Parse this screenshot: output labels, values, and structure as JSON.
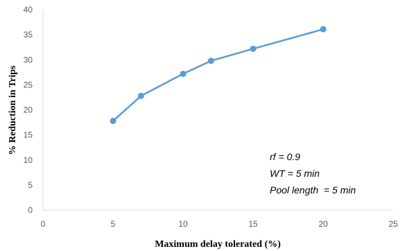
{
  "chart_data": {
    "type": "line",
    "title": "",
    "xlabel": "Maximum delay tolerated (%)",
    "ylabel": "% Reduction in Trips",
    "xlim": [
      0,
      25
    ],
    "ylim": [
      0,
      40
    ],
    "xticks": [
      0,
      5,
      10,
      15,
      20,
      25
    ],
    "yticks": [
      0,
      5,
      10,
      15,
      20,
      25,
      30,
      35,
      40
    ],
    "x_tick_labels": [
      "0",
      "5",
      "10",
      "15",
      "20",
      "25"
    ],
    "y_tick_labels": [
      "0",
      "5",
      "10",
      "15",
      "20",
      "25",
      "30",
      "35",
      "40"
    ],
    "grid": false,
    "legend": "none",
    "line_color": "#5B9BD5",
    "series": [
      {
        "x": [
          5,
          7,
          10,
          12,
          15,
          20
        ],
        "values": [
          17.8,
          22.8,
          27.2,
          29.8,
          32.2,
          36.1
        ]
      }
    ],
    "annotations": [
      "rf = 0.9",
      "WT = 5 min",
      "Pool length  = 5 min"
    ]
  }
}
